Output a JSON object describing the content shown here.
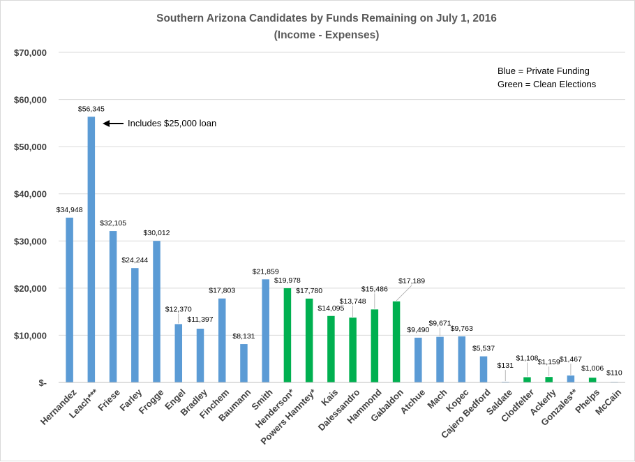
{
  "chart_data": {
    "type": "bar",
    "title": "Southern Arizona Candidates by Funds Remaining on July 1, 2016",
    "subtitle": "(Income - Expenses)",
    "ylim": [
      0,
      70000
    ],
    "yticks": [
      0,
      10000,
      20000,
      30000,
      40000,
      50000,
      60000,
      70000
    ],
    "ytick_labels": [
      "$-",
      "$10,000",
      "$20,000",
      "$30,000",
      "$40,000",
      "$50,000",
      "$60,000",
      "$70,000"
    ],
    "grid": true,
    "categories": [
      "Hernandez",
      "Leach***",
      "Friese",
      "Farley",
      "Frogge",
      "Engel",
      "Bradley",
      "Finchem",
      "Baumann",
      "Smith",
      "Henderson*",
      "Powers Hanntey*",
      "Kais",
      "Dalessandro",
      "Hammond",
      "Gabaldon",
      "Atchue",
      "Mach",
      "Kopec",
      "Cajero Bedford",
      "Saldate",
      "Clodfelter",
      "Ackerly",
      "Gonzales**",
      "Phelps",
      "McCain"
    ],
    "values": [
      34948,
      56345,
      32105,
      24244,
      30012,
      12370,
      11397,
      17803,
      8131,
      21859,
      19978,
      17780,
      14095,
      13748,
      15486,
      17189,
      9490,
      9671,
      9763,
      5537,
      131,
      1108,
      1159,
      1467,
      1006,
      110
    ],
    "value_labels": [
      "$34,948",
      "$56,345",
      "$32,105",
      "$24,244",
      "$30,012",
      "$12,370",
      "$11,397",
      "$17,803",
      "$8,131",
      "$21,859",
      "$19,978",
      "$17,780",
      "$14,095",
      "$13,748",
      "$15,486",
      "$17,189",
      "$9,490",
      "$9,671",
      "$9,763",
      "$5,537",
      "$131",
      "$1,108",
      "$1,159",
      "$1,467",
      "$1,006",
      "$110"
    ],
    "funding": [
      "private",
      "private",
      "private",
      "private",
      "private",
      "private",
      "private",
      "private",
      "private",
      "private",
      "clean",
      "clean",
      "clean",
      "clean",
      "clean",
      "clean",
      "private",
      "private",
      "private",
      "private",
      "private",
      "clean",
      "clean",
      "private",
      "clean",
      "private"
    ],
    "colors": {
      "private": "#5b9bd5",
      "clean": "#00b050",
      "grid": "#d9d9d9",
      "axis": "#bfbfbf"
    },
    "legend": {
      "position": "top-right",
      "entries": [
        "Blue = Private Funding",
        "Green = Clean Elections"
      ]
    },
    "annotation": {
      "text": "Includes $25,000 loan",
      "category": "Leach***",
      "arrow": "left"
    }
  }
}
